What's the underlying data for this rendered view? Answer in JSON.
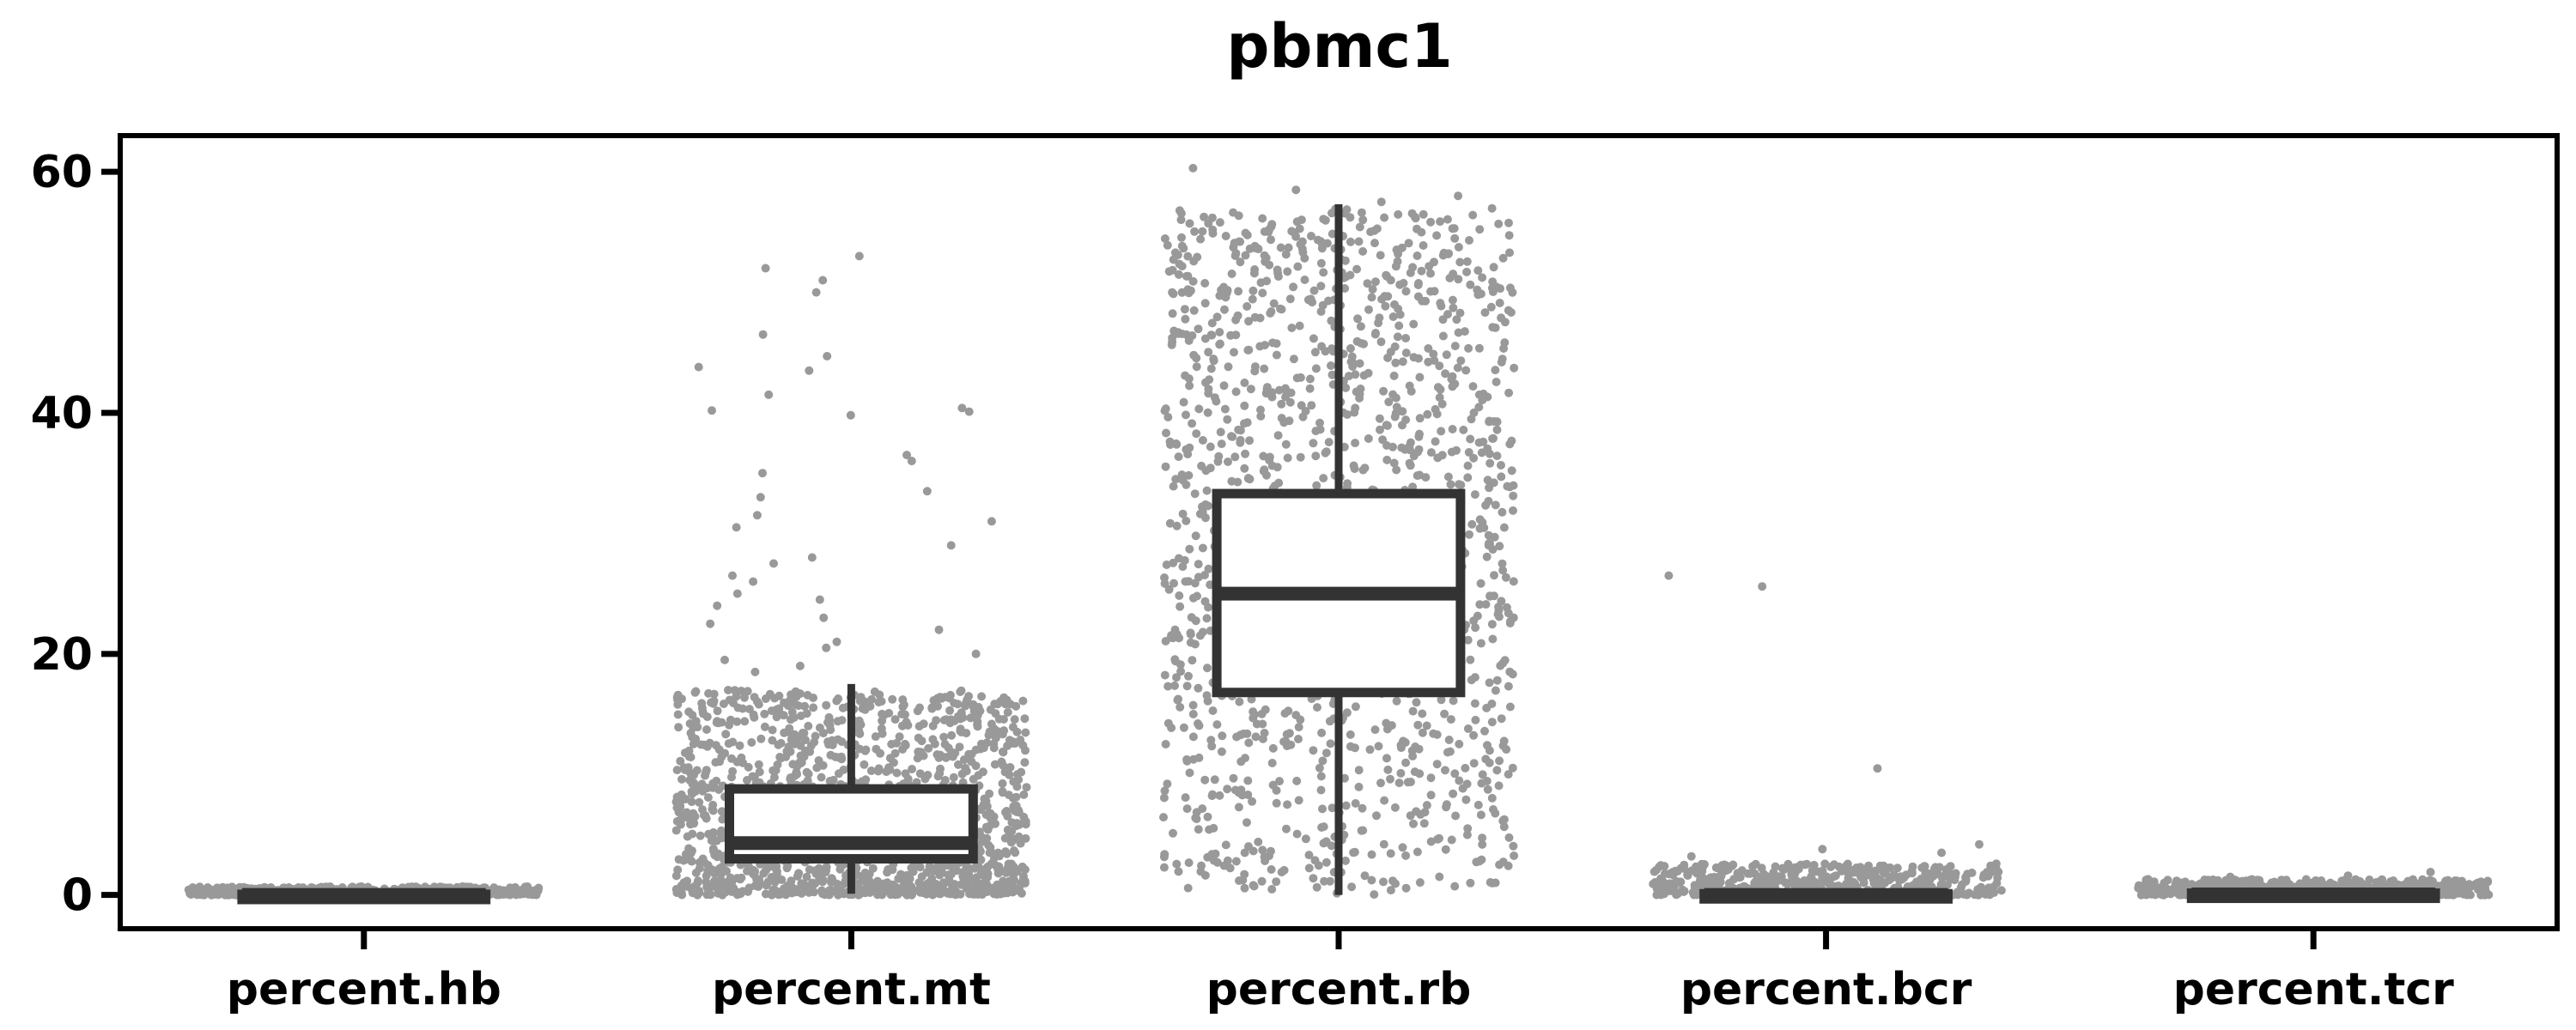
{
  "chart_data": {
    "type": "box",
    "title": "pbmc1",
    "xlabel": "",
    "ylabel": "",
    "categories": [
      "percent.hb",
      "percent.mt",
      "percent.rb",
      "percent.bcr",
      "percent.tcr"
    ],
    "ylim": [
      -2.8,
      63
    ],
    "yticks": [
      0,
      20,
      40,
      60
    ],
    "grid": false,
    "legend": "none",
    "colors": {
      "points": "#999999",
      "box_stroke": "#333333",
      "box_fill": "#ffffff",
      "frame": "#000000"
    },
    "boxes": [
      {
        "category": "percent.hb",
        "whisker_low": 0,
        "q1": 0,
        "median": 0,
        "q3": 0.05,
        "whisker_high": 0.1
      },
      {
        "category": "percent.mt",
        "whisker_low": 0.1,
        "q1": 3.0,
        "median": 4.3,
        "q3": 8.8,
        "whisker_high": 17.5
      },
      {
        "category": "percent.rb",
        "whisker_low": 0,
        "q1": 16.8,
        "median": 25.0,
        "q3": 33.3,
        "whisker_high": 57.3
      },
      {
        "category": "percent.bcr",
        "whisker_low": 0,
        "q1": 0,
        "median": 0,
        "q3": 0.1,
        "whisker_high": 0.3
      },
      {
        "category": "percent.tcr",
        "whisker_low": 0,
        "q1": 0,
        "median": 0.05,
        "q3": 0.15,
        "whisker_high": 0.4
      }
    ],
    "point_ranges": [
      {
        "category": "percent.hb",
        "dense_max": 0.7,
        "outliers": []
      },
      {
        "category": "percent.mt",
        "dense_max": 17,
        "outliers": [
          50,
          53,
          52,
          51,
          46.5,
          44.7,
          43.8,
          43.5,
          41.5,
          40.4,
          40.2,
          40.1,
          39.8,
          36.5,
          36,
          35,
          33.5,
          33,
          31.5,
          31,
          30.5,
          29,
          28,
          27.5,
          26.5,
          26,
          25,
          24.5,
          24,
          23,
          22.5,
          22,
          21,
          20.5,
          20,
          19.5,
          19,
          18.5
        ]
      },
      {
        "category": "percent.rb",
        "dense_max": 57,
        "outliers": [
          60.3,
          58.5,
          58,
          57.5
        ]
      },
      {
        "category": "percent.bcr",
        "dense_max": 2.6,
        "outliers": [
          26.5,
          25.6,
          10.5,
          4.2,
          3.8,
          3.5,
          3.2
        ]
      },
      {
        "category": "percent.tcr",
        "dense_max": 1.3,
        "outliers": [
          1.9,
          1.6,
          1.5
        ]
      }
    ]
  }
}
